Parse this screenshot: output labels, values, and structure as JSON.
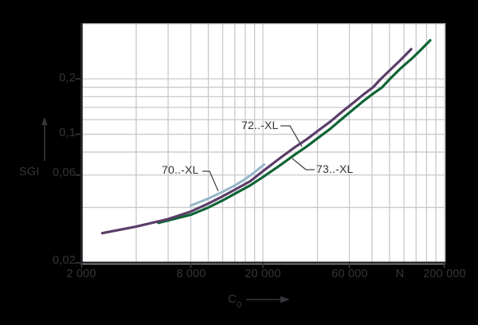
{
  "chart_data": {
    "type": "line",
    "title": "",
    "x_axis": {
      "label_main": "C",
      "label_sub": "0",
      "unit": "N",
      "scale": "log",
      "min": 2000,
      "max": 200000,
      "ticks": [
        {
          "value": 2000,
          "label": "2 000"
        },
        {
          "value": 8000,
          "label": "8 000"
        },
        {
          "value": 20000,
          "label": "20 000"
        },
        {
          "value": 60000,
          "label": "60 000"
        },
        {
          "value": 200000,
          "label": "200 000"
        }
      ],
      "gridlines": [
        4000,
        6000,
        8000,
        10000,
        12000,
        14000,
        16000,
        18000,
        20000,
        40000,
        60000,
        80000,
        100000,
        120000,
        140000,
        160000,
        180000
      ]
    },
    "y_axis": {
      "label": "SGI",
      "scale": "log",
      "min": 0.02,
      "max": 0.4,
      "ticks": [
        {
          "value": 0.2,
          "label": "0,2"
        },
        {
          "value": 0.1,
          "label": "0,1"
        },
        {
          "value": 0.06,
          "label": "0,06"
        },
        {
          "value": 0.02,
          "label": "0,02"
        }
      ],
      "gridlines": [
        0.04,
        0.06,
        0.08,
        0.1,
        0.12,
        0.14,
        0.16,
        0.18,
        0.2
      ]
    },
    "series": [
      {
        "name": "73..-XL",
        "color": "#0e6434",
        "width": 3.2,
        "points": [
          [
            5300,
            0.033
          ],
          [
            8000,
            0.0365
          ],
          [
            10000,
            0.04
          ],
          [
            12000,
            0.0437
          ],
          [
            14000,
            0.0475
          ],
          [
            17000,
            0.0527
          ],
          [
            20000,
            0.0585
          ],
          [
            25000,
            0.068
          ],
          [
            30000,
            0.0775
          ],
          [
            35000,
            0.086
          ],
          [
            40000,
            0.095
          ],
          [
            47000,
            0.107
          ],
          [
            55000,
            0.122
          ],
          [
            64000,
            0.138
          ],
          [
            72000,
            0.152
          ],
          [
            81000,
            0.166
          ],
          [
            91000,
            0.18
          ],
          [
            100500,
            0.2
          ],
          [
            115000,
            0.228
          ],
          [
            135000,
            0.262
          ],
          [
            150000,
            0.29
          ],
          [
            167500,
            0.324
          ]
        ]
      },
      {
        "name": "72..-XL",
        "color": "#5a3d68",
        "width": 3.2,
        "points": [
          [
            2600,
            0.029
          ],
          [
            4000,
            0.0315
          ],
          [
            6000,
            0.0346
          ],
          [
            8000,
            0.038
          ],
          [
            10000,
            0.042
          ],
          [
            12000,
            0.046
          ],
          [
            14000,
            0.05
          ],
          [
            17000,
            0.0555
          ],
          [
            20000,
            0.063
          ],
          [
            25000,
            0.0745
          ],
          [
            30000,
            0.085
          ],
          [
            35000,
            0.094
          ],
          [
            40000,
            0.104
          ],
          [
            47000,
            0.117
          ],
          [
            55000,
            0.133
          ],
          [
            64000,
            0.15
          ],
          [
            72000,
            0.165
          ],
          [
            81000,
            0.18
          ],
          [
            89500,
            0.2
          ],
          [
            100000,
            0.222
          ],
          [
            115000,
            0.253
          ],
          [
            131500,
            0.29
          ]
        ]
      },
      {
        "name": "70..-XL",
        "color": "#95b4c9",
        "width": 3.0,
        "points": [
          [
            8000,
            0.041
          ],
          [
            10000,
            0.0447
          ],
          [
            12000,
            0.0487
          ],
          [
            14000,
            0.0527
          ],
          [
            16000,
            0.0572
          ],
          [
            18000,
            0.0622
          ],
          [
            20300,
            0.0685
          ]
        ]
      }
    ],
    "annotations": [
      {
        "text": "70..-XL"
      },
      {
        "text": "72..-XL"
      },
      {
        "text": "73..-XL"
      }
    ],
    "legend_position": "none",
    "grid": "on"
  },
  "colors": {
    "background": "#000000",
    "plot_background": "#ffffff",
    "grid": "#c9c9cd",
    "axis_spine": "#222226",
    "frame_top": "#98989c",
    "outside_text": "#38343a",
    "inside_text": "#333337",
    "leader": "#454547",
    "tick": "#3a3a3e"
  }
}
